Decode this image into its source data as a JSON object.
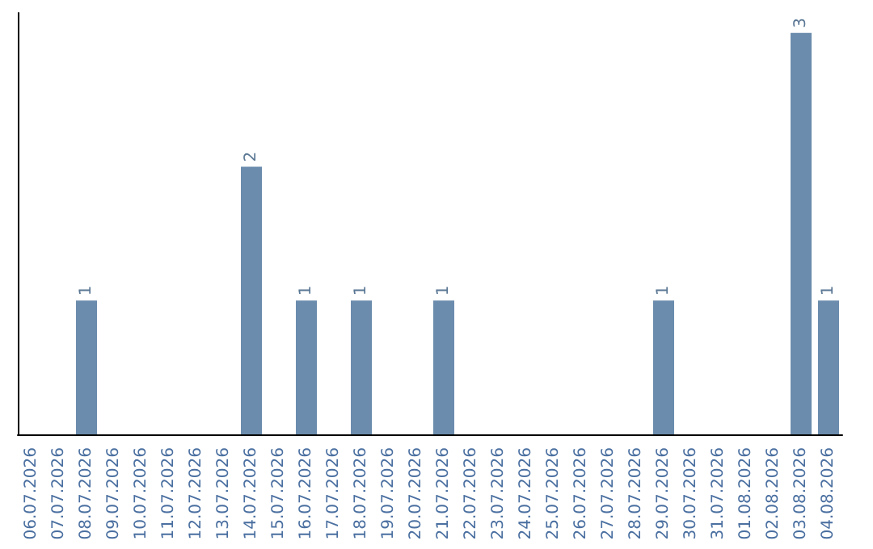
{
  "chart_data": {
    "type": "bar",
    "categories": [
      "06.07.2026",
      "07.07.2026",
      "08.07.2026",
      "09.07.2026",
      "10.07.2026",
      "11.07.2026",
      "12.07.2026",
      "13.07.2026",
      "14.07.2026",
      "15.07.2026",
      "16.07.2026",
      "17.07.2026",
      "18.07.2026",
      "19.07.2026",
      "20.07.2026",
      "21.07.2026",
      "22.07.2026",
      "23.07.2026",
      "24.07.2026",
      "25.07.2026",
      "26.07.2026",
      "27.07.2026",
      "28.07.2026",
      "29.07.2026",
      "30.07.2026",
      "31.07.2026",
      "01.08.2026",
      "02.08.2026",
      "03.08.2026",
      "04.08.2026"
    ],
    "values": [
      0,
      0,
      1,
      0,
      0,
      0,
      0,
      0,
      2,
      0,
      1,
      0,
      1,
      0,
      0,
      1,
      0,
      0,
      0,
      0,
      0,
      0,
      0,
      1,
      0,
      0,
      0,
      0,
      3,
      1
    ],
    "value_labels": [
      null,
      null,
      "1",
      null,
      null,
      null,
      null,
      null,
      "2",
      null,
      "1",
      null,
      "1",
      null,
      null,
      "1",
      null,
      null,
      null,
      null,
      null,
      null,
      null,
      "1",
      null,
      null,
      null,
      null,
      "3",
      "1"
    ],
    "color": "#6b8cad",
    "ylim": [
      0,
      3.15
    ],
    "tick_labels": "x"
  }
}
